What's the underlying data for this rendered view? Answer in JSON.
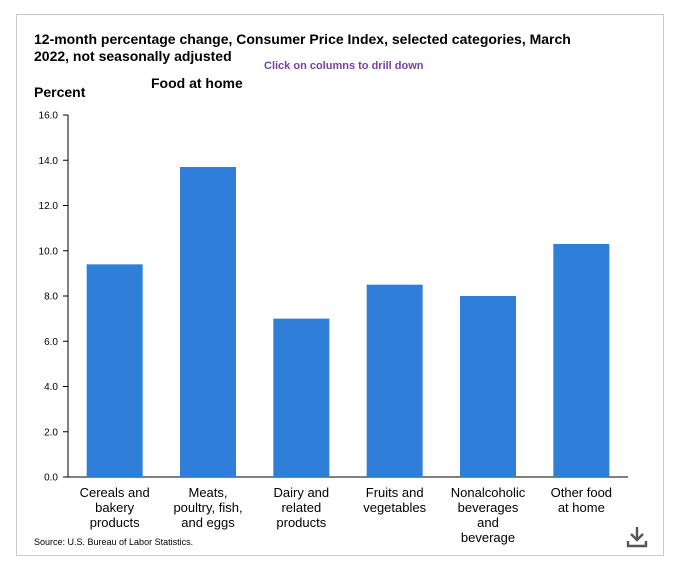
{
  "title": "12-month percentage change, Consumer Price Index, selected categories, March 2022, not seasonally adjusted",
  "hint": "Click on columns to drill down",
  "subtitle": "Food at home",
  "ylabel": "Percent",
  "source": "Source: U.S. Bureau of Labor Statistics.",
  "colors": {
    "bar": "#2f7ed8",
    "axis": "#000000"
  },
  "icons": {
    "download": "download-icon"
  },
  "chart_data": {
    "type": "bar",
    "title": "12-month percentage change, Consumer Price Index, selected categories, March 2022, not seasonally adjusted",
    "subtitle": "Food at home",
    "ylabel": "Percent",
    "xlabel": "",
    "categories": [
      [
        "Cereals and",
        "bakery",
        "products"
      ],
      [
        "Meats,",
        "poultry, fish,",
        "and eggs"
      ],
      [
        "Dairy and",
        "related",
        "products"
      ],
      [
        "Fruits and",
        "vegetables"
      ],
      [
        "Nonalcoholic",
        "beverages",
        "and",
        "beverage"
      ],
      [
        "Other food",
        "at home"
      ]
    ],
    "values": [
      9.4,
      13.7,
      7.0,
      8.5,
      8.0,
      10.3
    ],
    "ylim": [
      0,
      16
    ],
    "yticks": [
      "0.0",
      "2.0",
      "4.0",
      "6.0",
      "8.0",
      "10.0",
      "12.0",
      "14.0",
      "16.0"
    ],
    "grid": false,
    "legend": "none"
  }
}
